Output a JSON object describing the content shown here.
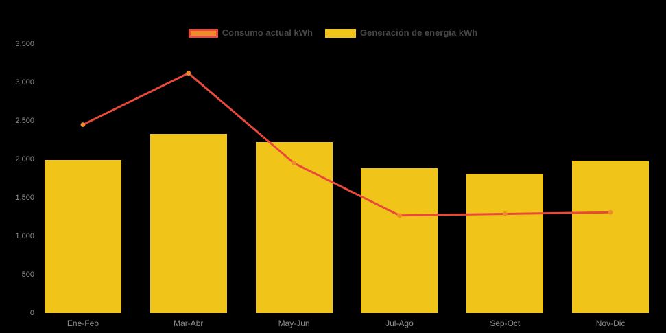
{
  "chart_data": {
    "type": "combo",
    "categories": [
      "Ene-Feb",
      "Mar-Abr",
      "May-Jun",
      "Jul-Ago",
      "Sep-Oct",
      "Nov-Dic"
    ],
    "series": [
      {
        "name": "Consumo actual kWh",
        "type": "line",
        "values": [
          2450,
          3120,
          1950,
          1270,
          1290,
          1310
        ],
        "line_color": "#E8493B",
        "marker_color": "#EE8C2C"
      },
      {
        "name": "Generación de energía kWh",
        "type": "bar",
        "values": [
          1990,
          2330,
          2220,
          1880,
          1810,
          1980
        ],
        "color": "#F0C419"
      }
    ],
    "ylim": [
      0,
      3500
    ],
    "ytick_step": 500,
    "ytick_labels": [
      "0",
      "500",
      "1,000",
      "1,500",
      "2,000",
      "2,500",
      "3,000",
      "3,500"
    ],
    "legend_position": "top",
    "grid": false,
    "background_color": "#000000",
    "axis_label_color": "#8E8E8E",
    "legend_text_color": "#474747"
  }
}
